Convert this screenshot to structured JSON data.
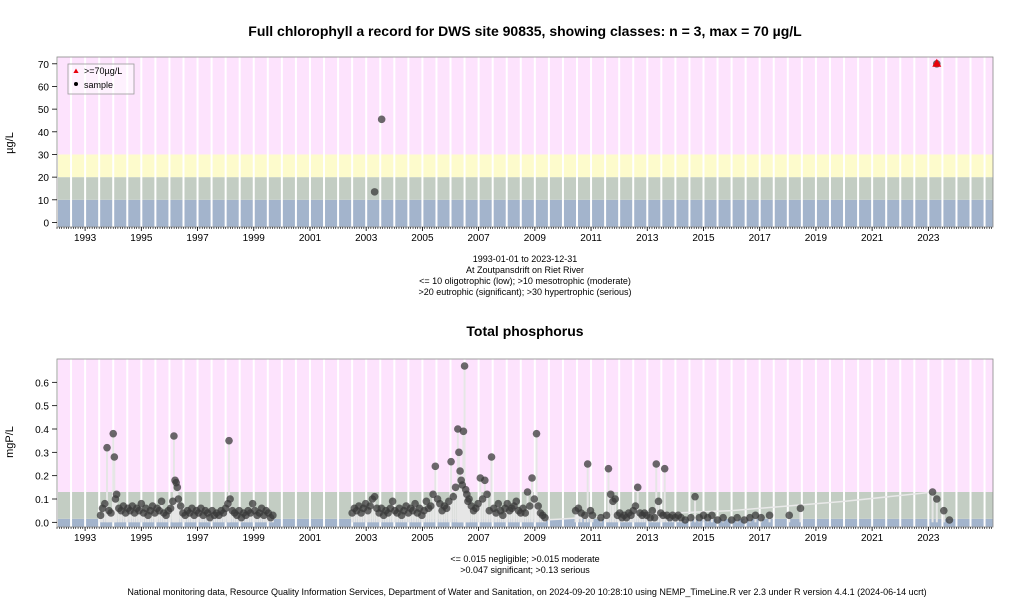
{
  "chart_data": [
    {
      "type": "scatter",
      "title": "Full chlorophyll a record for DWS site 90835, showing classes: n = 3, max = 70 µg/L",
      "ylabel": "µg/L",
      "ylim": [
        -2,
        73
      ],
      "yticks": [
        0,
        10,
        20,
        30,
        40,
        50,
        60,
        70
      ],
      "xlim": [
        1992.0,
        2025.3
      ],
      "xticks": [
        1993,
        1995,
        1997,
        1999,
        2001,
        2003,
        2005,
        2007,
        2009,
        2011,
        2013,
        2015,
        2017,
        2019,
        2021,
        2023
      ],
      "grid": true,
      "legend_position": "top-left",
      "legend": [
        {
          "label": ">=70µg/L",
          "color": "#e8000b",
          "marker": "triangle"
        },
        {
          "label": "sample",
          "color": "#000000",
          "marker": "circle"
        }
      ],
      "bands": [
        {
          "from": -2,
          "to": 10,
          "color": "#a3b4cc"
        },
        {
          "from": 10,
          "to": 20,
          "color": "#c3cdc3"
        },
        {
          "from": 20,
          "to": 30,
          "color": "#fdfbcc"
        },
        {
          "from": 30,
          "to": 73,
          "color": "#fde3fd"
        }
      ],
      "points": [
        [
          2003.3,
          13.5
        ],
        [
          2003.55,
          45.5
        ]
      ],
      "max_points": [
        [
          2023.3,
          70
        ]
      ],
      "caption": [
        "1993-01-01 to 2023-12-31",
        "At Zoutpansdrift on Riet River",
        "<= 10 oligotrophic (low); >10 mesotrophic (moderate)",
        ">20 eutrophic (significant); >30 hypertrophic (serious)"
      ]
    },
    {
      "type": "scatter",
      "title": "Total phosphorus",
      "ylabel": "mgP/L",
      "ylim": [
        -0.02,
        0.7
      ],
      "yticks": [
        0.0,
        0.1,
        0.2,
        0.3,
        0.4,
        0.5,
        0.6
      ],
      "xlim": [
        1992.0,
        2025.3
      ],
      "xticks": [
        1993,
        1995,
        1997,
        1999,
        2001,
        2003,
        2005,
        2007,
        2009,
        2011,
        2013,
        2015,
        2017,
        2019,
        2021,
        2023
      ],
      "grid": true,
      "bands": [
        {
          "from": -0.02,
          "to": 0.015,
          "color": "#a3b4cc"
        },
        {
          "from": 0.015,
          "to": 0.13,
          "color": "#c3cdc3"
        },
        {
          "from": 0.13,
          "to": 0.7,
          "color": "#fde3fd"
        }
      ],
      "points": [
        [
          1993.55,
          0.03
        ],
        [
          1993.62,
          0.06
        ],
        [
          1993.7,
          0.08
        ],
        [
          1993.78,
          0.32
        ],
        [
          1993.85,
          0.05
        ],
        [
          1993.92,
          0.04
        ],
        [
          1994.0,
          0.38
        ],
        [
          1994.04,
          0.28
        ],
        [
          1994.08,
          0.1
        ],
        [
          1994.12,
          0.12
        ],
        [
          1994.2,
          0.06
        ],
        [
          1994.28,
          0.05
        ],
        [
          1994.36,
          0.07
        ],
        [
          1994.44,
          0.04
        ],
        [
          1994.52,
          0.06
        ],
        [
          1994.6,
          0.05
        ],
        [
          1994.68,
          0.07
        ],
        [
          1994.76,
          0.04
        ],
        [
          1994.84,
          0.06
        ],
        [
          1994.92,
          0.05
        ],
        [
          1995.0,
          0.08
        ],
        [
          1995.08,
          0.04
        ],
        [
          1995.16,
          0.06
        ],
        [
          1995.24,
          0.03
        ],
        [
          1995.32,
          0.05
        ],
        [
          1995.4,
          0.07
        ],
        [
          1995.48,
          0.04
        ],
        [
          1995.56,
          0.06
        ],
        [
          1995.64,
          0.05
        ],
        [
          1995.72,
          0.09
        ],
        [
          1995.8,
          0.04
        ],
        [
          1995.88,
          0.03
        ],
        [
          1995.96,
          0.05
        ],
        [
          1996.04,
          0.06
        ],
        [
          1996.12,
          0.09
        ],
        [
          1996.16,
          0.37
        ],
        [
          1996.2,
          0.18
        ],
        [
          1996.24,
          0.17
        ],
        [
          1996.28,
          0.15
        ],
        [
          1996.32,
          0.1
        ],
        [
          1996.4,
          0.07
        ],
        [
          1996.48,
          0.04
        ],
        [
          1996.56,
          0.03
        ],
        [
          1996.64,
          0.05
        ],
        [
          1996.72,
          0.04
        ],
        [
          1996.8,
          0.06
        ],
        [
          1996.88,
          0.03
        ],
        [
          1996.96,
          0.05
        ],
        [
          1997.04,
          0.04
        ],
        [
          1997.12,
          0.06
        ],
        [
          1997.2,
          0.03
        ],
        [
          1997.28,
          0.05
        ],
        [
          1997.36,
          0.04
        ],
        [
          1997.44,
          0.02
        ],
        [
          1997.52,
          0.05
        ],
        [
          1997.6,
          0.03
        ],
        [
          1997.68,
          0.04
        ],
        [
          1997.76,
          0.03
        ],
        [
          1997.84,
          0.05
        ],
        [
          1997.92,
          0.04
        ],
        [
          1998.0,
          0.06
        ],
        [
          1998.08,
          0.08
        ],
        [
          1998.12,
          0.35
        ],
        [
          1998.16,
          0.1
        ],
        [
          1998.24,
          0.05
        ],
        [
          1998.32,
          0.04
        ],
        [
          1998.4,
          0.03
        ],
        [
          1998.48,
          0.05
        ],
        [
          1998.56,
          0.02
        ],
        [
          1998.64,
          0.04
        ],
        [
          1998.72,
          0.03
        ],
        [
          1998.8,
          0.05
        ],
        [
          1998.88,
          0.04
        ],
        [
          1998.96,
          0.08
        ],
        [
          1999.04,
          0.05
        ],
        [
          1999.12,
          0.03
        ],
        [
          1999.2,
          0.04
        ],
        [
          1999.28,
          0.06
        ],
        [
          1999.36,
          0.03
        ],
        [
          1999.44,
          0.05
        ],
        [
          1999.52,
          0.04
        ],
        [
          1999.6,
          0.02
        ],
        [
          1999.68,
          0.03
        ],
        [
          2002.5,
          0.04
        ],
        [
          2002.58,
          0.06
        ],
        [
          2002.66,
          0.05
        ],
        [
          2002.74,
          0.07
        ],
        [
          2002.82,
          0.04
        ],
        [
          2002.9,
          0.06
        ],
        [
          2002.98,
          0.08
        ],
        [
          2003.06,
          0.05
        ],
        [
          2003.14,
          0.07
        ],
        [
          2003.22,
          0.1
        ],
        [
          2003.3,
          0.11
        ],
        [
          2003.38,
          0.06
        ],
        [
          2003.46,
          0.04
        ],
        [
          2003.54,
          0.06
        ],
        [
          2003.62,
          0.03
        ],
        [
          2003.7,
          0.05
        ],
        [
          2003.78,
          0.04
        ],
        [
          2003.86,
          0.06
        ],
        [
          2003.94,
          0.09
        ],
        [
          2004.02,
          0.05
        ],
        [
          2004.1,
          0.04
        ],
        [
          2004.18,
          0.06
        ],
        [
          2004.26,
          0.03
        ],
        [
          2004.34,
          0.05
        ],
        [
          2004.42,
          0.07
        ],
        [
          2004.5,
          0.04
        ],
        [
          2004.58,
          0.06
        ],
        [
          2004.66,
          0.05
        ],
        [
          2004.74,
          0.08
        ],
        [
          2004.82,
          0.04
        ],
        [
          2004.9,
          0.06
        ],
        [
          2004.98,
          0.03
        ],
        [
          2005.06,
          0.05
        ],
        [
          2005.14,
          0.09
        ],
        [
          2005.22,
          0.06
        ],
        [
          2005.3,
          0.07
        ],
        [
          2005.38,
          0.12
        ],
        [
          2005.46,
          0.24
        ],
        [
          2005.54,
          0.1
        ],
        [
          2005.62,
          0.08
        ],
        [
          2005.7,
          0.05
        ],
        [
          2005.78,
          0.07
        ],
        [
          2005.86,
          0.06
        ],
        [
          2005.94,
          0.09
        ],
        [
          2006.02,
          0.26
        ],
        [
          2006.1,
          0.11
        ],
        [
          2006.18,
          0.15
        ],
        [
          2006.26,
          0.4
        ],
        [
          2006.3,
          0.3
        ],
        [
          2006.34,
          0.22
        ],
        [
          2006.38,
          0.18
        ],
        [
          2006.42,
          0.16
        ],
        [
          2006.46,
          0.39
        ],
        [
          2006.5,
          0.67
        ],
        [
          2006.54,
          0.14
        ],
        [
          2006.58,
          0.12
        ],
        [
          2006.62,
          0.09
        ],
        [
          2006.66,
          0.1
        ],
        [
          2006.74,
          0.07
        ],
        [
          2006.82,
          0.05
        ],
        [
          2006.9,
          0.06
        ],
        [
          2006.98,
          0.08
        ],
        [
          2007.06,
          0.19
        ],
        [
          2007.14,
          0.1
        ],
        [
          2007.22,
          0.18
        ],
        [
          2007.3,
          0.12
        ],
        [
          2007.38,
          0.05
        ],
        [
          2007.46,
          0.28
        ],
        [
          2007.54,
          0.06
        ],
        [
          2007.62,
          0.04
        ],
        [
          2007.7,
          0.08
        ],
        [
          2007.78,
          0.05
        ],
        [
          2007.86,
          0.03
        ],
        [
          2007.94,
          0.06
        ],
        [
          2008.02,
          0.08
        ],
        [
          2008.1,
          0.05
        ],
        [
          2008.18,
          0.06
        ],
        [
          2008.26,
          0.07
        ],
        [
          2008.34,
          0.09
        ],
        [
          2008.42,
          0.05
        ],
        [
          2008.5,
          0.04
        ],
        [
          2008.58,
          0.06
        ],
        [
          2008.66,
          0.04
        ],
        [
          2008.74,
          0.13
        ],
        [
          2008.82,
          0.07
        ],
        [
          2008.9,
          0.19
        ],
        [
          2008.98,
          0.1
        ],
        [
          2009.06,
          0.38
        ],
        [
          2009.12,
          0.07
        ],
        [
          2009.2,
          0.04
        ],
        [
          2009.28,
          0.03
        ],
        [
          2009.36,
          0.02
        ],
        [
          2010.45,
          0.05
        ],
        [
          2010.55,
          0.06
        ],
        [
          2010.65,
          0.04
        ],
        [
          2010.78,
          0.03
        ],
        [
          2010.88,
          0.25
        ],
        [
          2010.98,
          0.05
        ],
        [
          2011.05,
          0.03
        ],
        [
          2011.35,
          0.02
        ],
        [
          2011.55,
          0.03
        ],
        [
          2011.62,
          0.23
        ],
        [
          2011.7,
          0.12
        ],
        [
          2011.78,
          0.09
        ],
        [
          2011.86,
          0.1
        ],
        [
          2011.94,
          0.03
        ],
        [
          2012.02,
          0.04
        ],
        [
          2012.1,
          0.02
        ],
        [
          2012.18,
          0.03
        ],
        [
          2012.26,
          0.02
        ],
        [
          2012.34,
          0.04
        ],
        [
          2012.42,
          0.03
        ],
        [
          2012.5,
          0.05
        ],
        [
          2012.58,
          0.07
        ],
        [
          2012.66,
          0.15
        ],
        [
          2012.74,
          0.04
        ],
        [
          2012.82,
          0.03
        ],
        [
          2012.9,
          0.04
        ],
        [
          2012.98,
          0.03
        ],
        [
          2013.1,
          0.02
        ],
        [
          2013.18,
          0.05
        ],
        [
          2013.26,
          0.02
        ],
        [
          2013.32,
          0.25
        ],
        [
          2013.4,
          0.09
        ],
        [
          2013.48,
          0.04
        ],
        [
          2013.56,
          0.03
        ],
        [
          2013.62,
          0.23
        ],
        [
          2013.7,
          0.03
        ],
        [
          2013.8,
          0.02
        ],
        [
          2013.9,
          0.03
        ],
        [
          2014.0,
          0.02
        ],
        [
          2014.1,
          0.03
        ],
        [
          2014.2,
          0.02
        ],
        [
          2014.35,
          0.01
        ],
        [
          2014.55,
          0.02
        ],
        [
          2014.7,
          0.11
        ],
        [
          2014.85,
          0.02
        ],
        [
          2015.0,
          0.03
        ],
        [
          2015.15,
          0.02
        ],
        [
          2015.3,
          0.03
        ],
        [
          2015.5,
          0.01
        ],
        [
          2015.7,
          0.02
        ],
        [
          2016.0,
          0.01
        ],
        [
          2016.2,
          0.02
        ],
        [
          2016.45,
          0.01
        ],
        [
          2016.65,
          0.02
        ],
        [
          2016.85,
          0.03
        ],
        [
          2017.05,
          0.02
        ],
        [
          2017.35,
          0.03
        ],
        [
          2018.05,
          0.03
        ],
        [
          2018.45,
          0.06
        ],
        [
          2023.15,
          0.13
        ],
        [
          2023.3,
          0.1
        ],
        [
          2023.55,
          0.05
        ],
        [
          2023.75,
          0.01
        ]
      ],
      "caption": [
        "<= 0.015 negligible; >0.015 moderate",
        ">0.047 significant; >0.13 serious"
      ]
    }
  ],
  "footer": "National monitoring data, Resource Quality Information Services, Department of Water and Sanitation, on 2024-09-20 10:28:10 using NEMP_TimeLine.R ver 2.3 under R version 4.4.1 (2024-06-14 ucrt)"
}
